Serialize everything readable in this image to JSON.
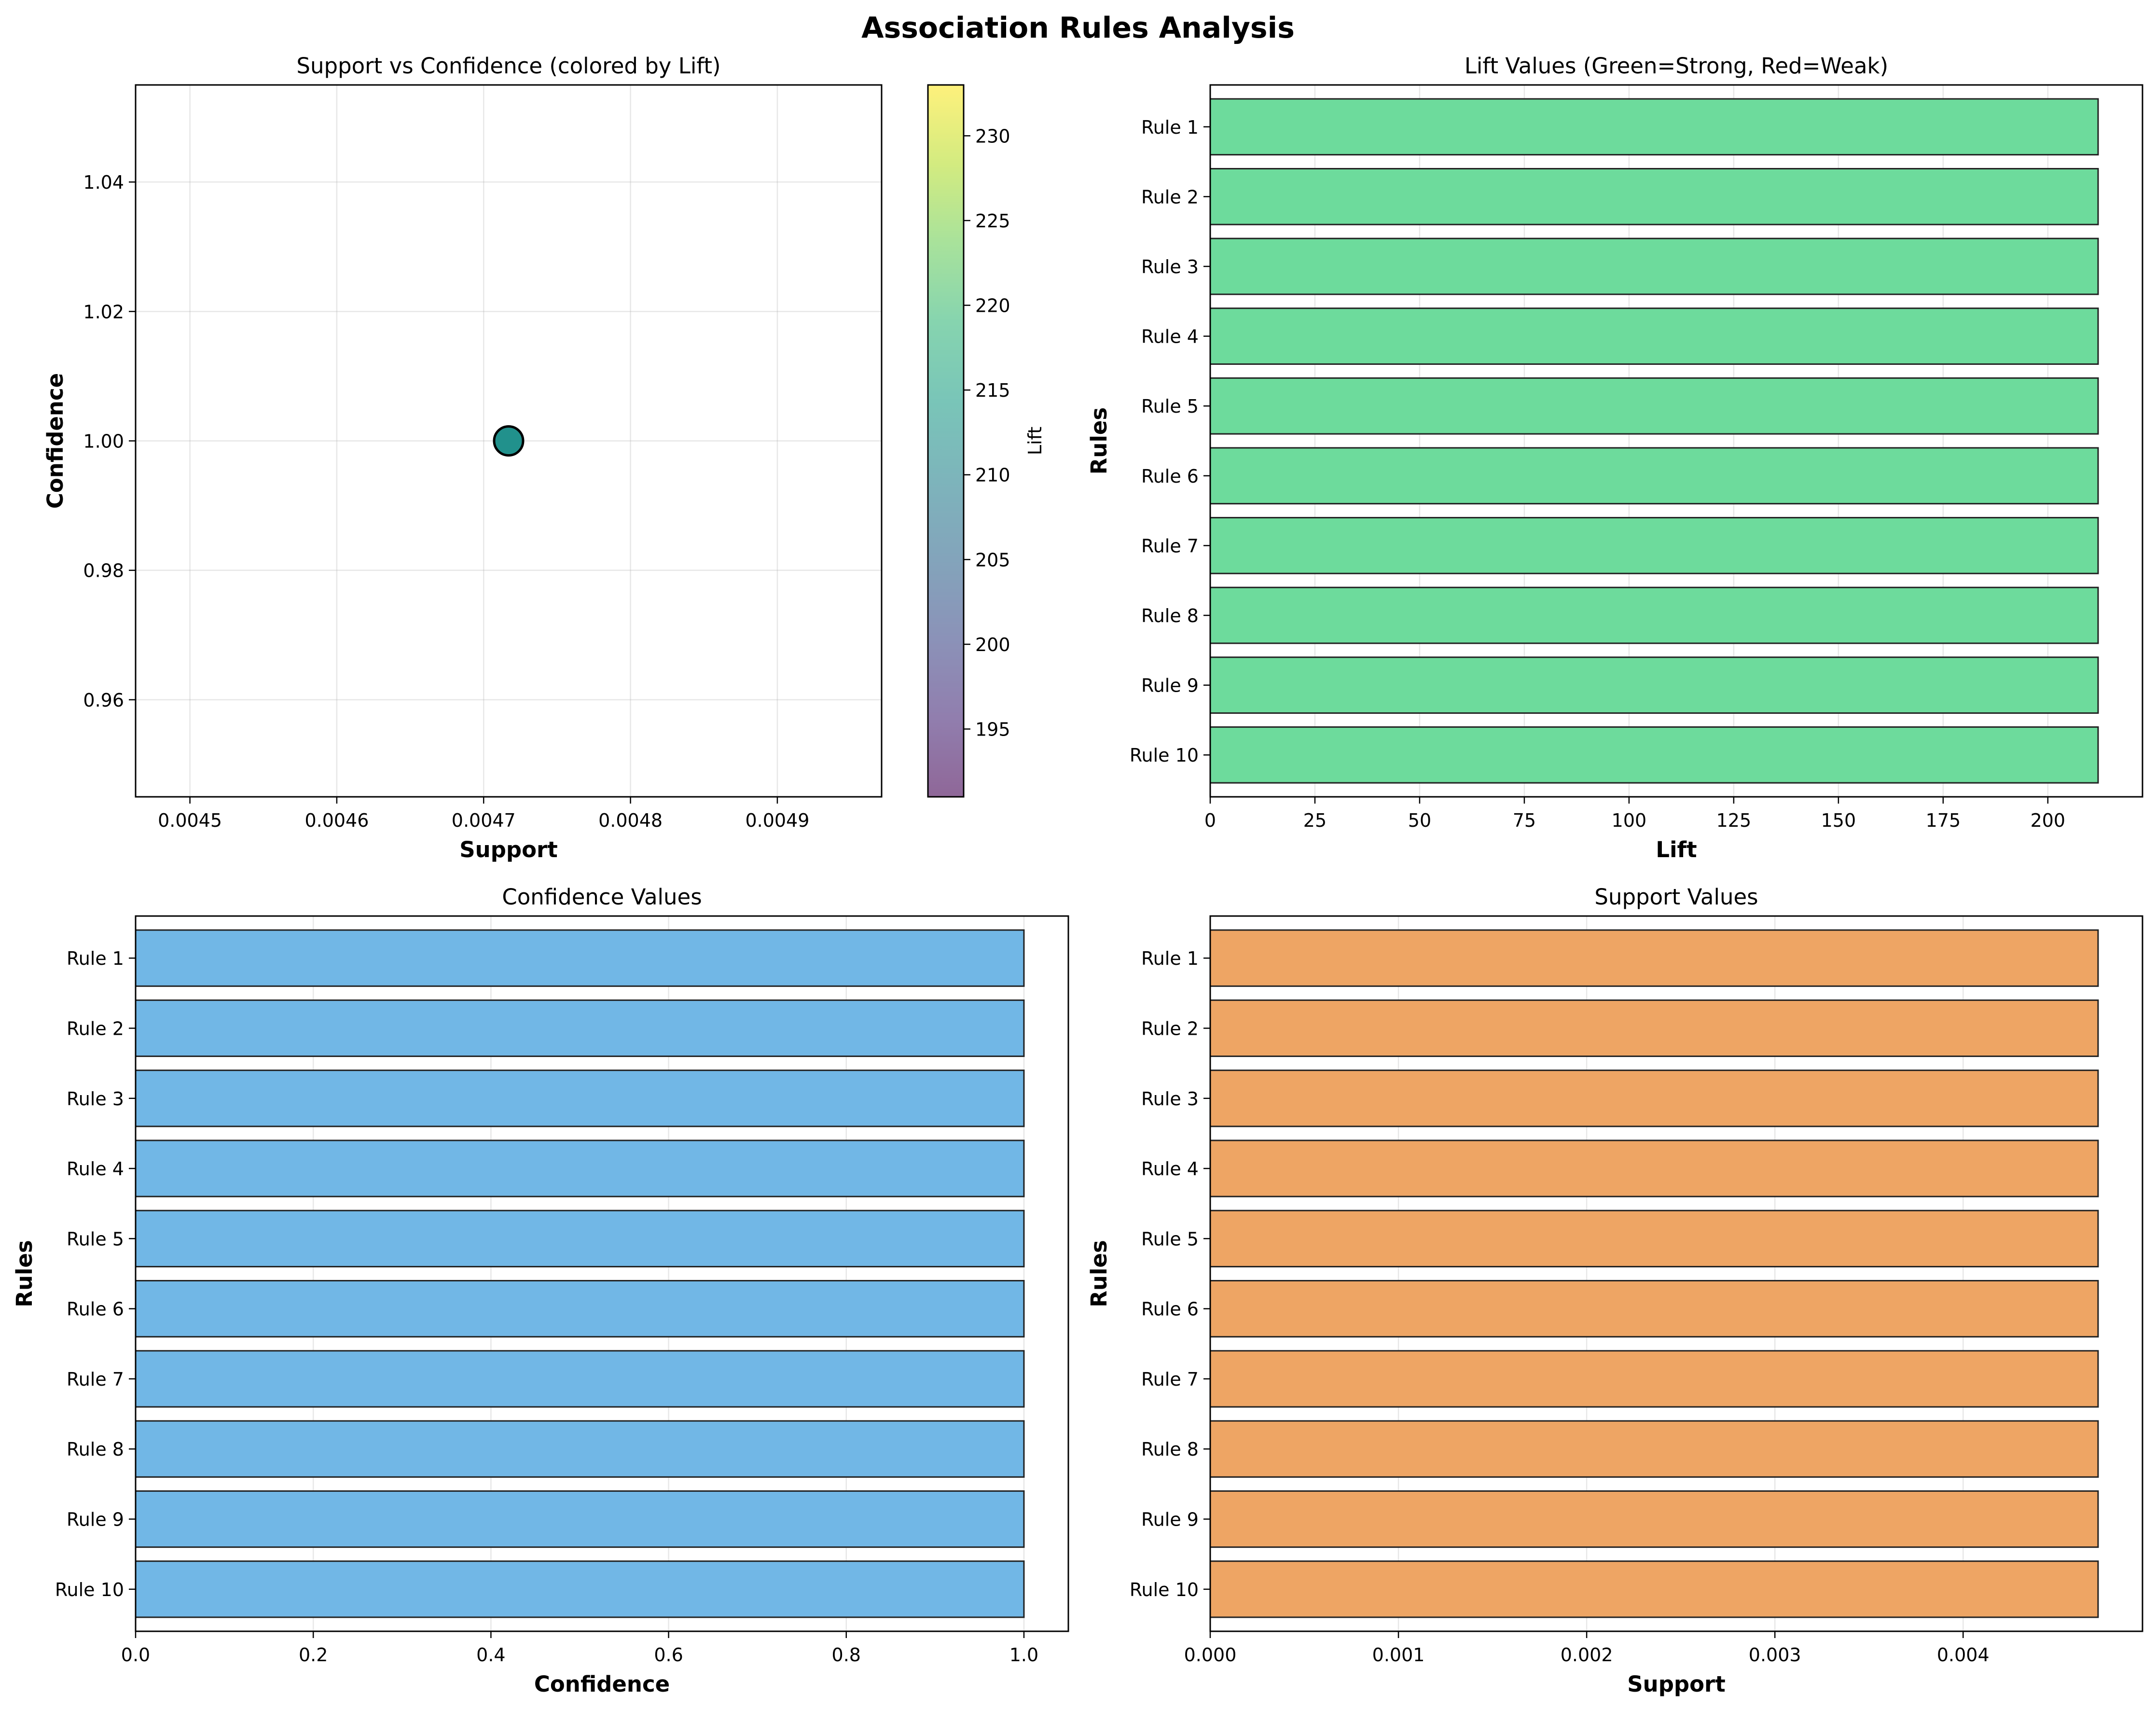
{
  "figure": {
    "title": "Association Rules Analysis"
  },
  "chart_data": [
    {
      "type": "scatter",
      "title": "Support vs Confidence (colored by Lift)",
      "xlabel": "Support",
      "ylabel": "Confidence",
      "xlim": [
        0.004463,
        0.004971
      ],
      "ylim": [
        0.945,
        1.055
      ],
      "xticks": [
        0.0045,
        0.0046,
        0.0047,
        0.0048,
        0.0049
      ],
      "xtick_labels": [
        "0.0045",
        "0.0046",
        "0.0047",
        "0.0048",
        "0.0049"
      ],
      "yticks": [
        0.96,
        0.98,
        1.0,
        1.02,
        1.04
      ],
      "ytick_labels": [
        "0.96",
        "0.98",
        "1.00",
        "1.02",
        "1.04"
      ],
      "grid": true,
      "points": [
        {
          "x": 0.004717,
          "y": 1.0,
          "lift": 212.0
        }
      ],
      "point_color": "#21918c",
      "colorbar": {
        "label": "Lift",
        "colormap": "viridis",
        "alpha": 0.6,
        "range": [
          191.0,
          233.0
        ],
        "ticks": [
          195,
          200,
          205,
          210,
          215,
          220,
          225,
          230
        ],
        "tick_labels": [
          "195",
          "200",
          "205",
          "210",
          "215",
          "220",
          "225",
          "230"
        ]
      }
    },
    {
      "type": "bar",
      "orientation": "horizontal",
      "title": "Lift Values (Green=Strong, Red=Weak)",
      "xlabel": "Lift",
      "ylabel": "Rules",
      "categories": [
        "Rule 1",
        "Rule 2",
        "Rule 3",
        "Rule 4",
        "Rule 5",
        "Rule 6",
        "Rule 7",
        "Rule 8",
        "Rule 9",
        "Rule 10"
      ],
      "values": [
        212.0,
        212.0,
        212.0,
        212.0,
        212.0,
        212.0,
        212.0,
        212.0,
        212.0,
        212.0
      ],
      "xlim": [
        0,
        222.6
      ],
      "xticks": [
        0,
        25,
        50,
        75,
        100,
        125,
        150,
        175,
        200
      ],
      "xtick_labels": [
        "0",
        "25",
        "50",
        "75",
        "100",
        "125",
        "150",
        "175",
        "200"
      ],
      "grid": true,
      "bar_color": "#2ecc71",
      "bar_alpha": 0.7
    },
    {
      "type": "bar",
      "orientation": "horizontal",
      "title": "Confidence Values",
      "xlabel": "Confidence",
      "ylabel": "Rules",
      "categories": [
        "Rule 1",
        "Rule 2",
        "Rule 3",
        "Rule 4",
        "Rule 5",
        "Rule 6",
        "Rule 7",
        "Rule 8",
        "Rule 9",
        "Rule 10"
      ],
      "values": [
        1.0,
        1.0,
        1.0,
        1.0,
        1.0,
        1.0,
        1.0,
        1.0,
        1.0,
        1.0
      ],
      "xlim": [
        0,
        1.05
      ],
      "xticks": [
        0.0,
        0.2,
        0.4,
        0.6,
        0.8,
        1.0
      ],
      "xtick_labels": [
        "0.0",
        "0.2",
        "0.4",
        "0.6",
        "0.8",
        "1.0"
      ],
      "grid": true,
      "bar_color": "#3498db",
      "bar_alpha": 0.7
    },
    {
      "type": "bar",
      "orientation": "horizontal",
      "title": "Support Values",
      "xlabel": "Support",
      "ylabel": "Rules",
      "categories": [
        "Rule 1",
        "Rule 2",
        "Rule 3",
        "Rule 4",
        "Rule 5",
        "Rule 6",
        "Rule 7",
        "Rule 8",
        "Rule 9",
        "Rule 10"
      ],
      "values": [
        0.004717,
        0.004717,
        0.004717,
        0.004717,
        0.004717,
        0.004717,
        0.004717,
        0.004717,
        0.004717,
        0.004717
      ],
      "xlim": [
        0,
        0.004953
      ],
      "xticks": [
        0.0,
        0.001,
        0.002,
        0.003,
        0.004
      ],
      "xtick_labels": [
        "0.000",
        "0.001",
        "0.002",
        "0.003",
        "0.004"
      ],
      "grid": true,
      "bar_color": "#e67e22",
      "bar_alpha": 0.7
    }
  ]
}
